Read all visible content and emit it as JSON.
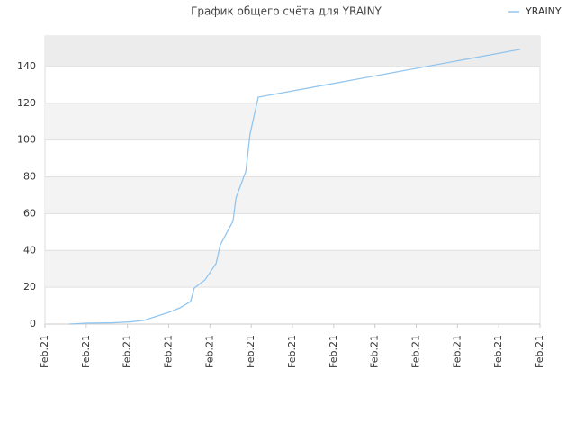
{
  "chart_data": {
    "type": "line",
    "title": "График общего счёта для YRAINY",
    "x": [
      0.59,
      0.98,
      1.64,
      2.07,
      2.4,
      2.73,
      3.01,
      3.27,
      3.53,
      3.62,
      3.88,
      4.15,
      4.25,
      4.56,
      4.63,
      4.87,
      4.97,
      5.17,
      11.52
    ],
    "series": [
      {
        "name": "YRAINY",
        "color": "#92c5ee",
        "values": [
          0,
          0.5,
          0.7,
          1.2,
          2,
          4.4,
          6.4,
          8.8,
          12.2,
          19.6,
          24,
          33,
          43,
          56,
          68.5,
          83,
          103,
          123.3,
          149.3
        ]
      }
    ],
    "xlim": [
      0,
      12
    ],
    "xticks": [
      {
        "value": 0,
        "label": "Feb.21"
      },
      {
        "value": 1,
        "label": "Feb.21"
      },
      {
        "value": 2,
        "label": "Feb.21"
      },
      {
        "value": 3,
        "label": "Feb.21"
      },
      {
        "value": 4,
        "label": "Feb.21"
      },
      {
        "value": 5,
        "label": "Feb.21"
      },
      {
        "value": 6,
        "label": "Feb.21"
      },
      {
        "value": 7,
        "label": "Feb.21"
      },
      {
        "value": 8,
        "label": "Feb.21"
      },
      {
        "value": 9,
        "label": "Feb.21"
      },
      {
        "value": 10,
        "label": "Feb.21"
      },
      {
        "value": 11,
        "label": "Feb.21"
      },
      {
        "value": 12,
        "label": "Feb.21"
      }
    ],
    "ylim": [
      0,
      156.6
    ],
    "yticks": [
      0,
      20,
      40,
      60,
      80,
      100,
      120,
      140
    ],
    "grid": true,
    "legend": "top-right"
  }
}
